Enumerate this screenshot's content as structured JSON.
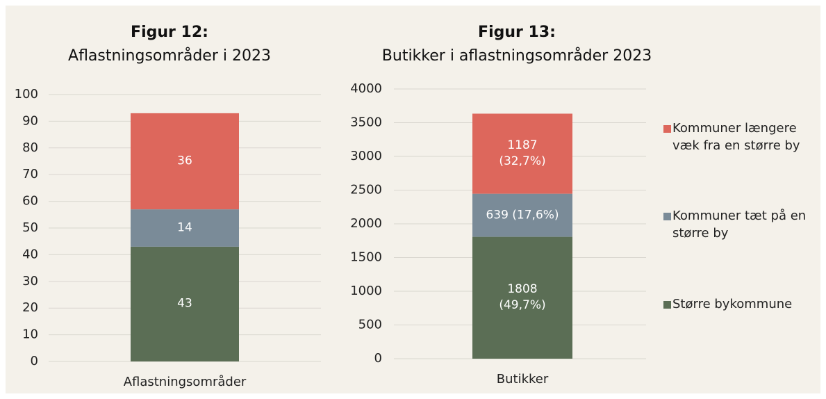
{
  "chart_data": [
    {
      "type": "bar",
      "stacked": true,
      "title": "Figur 12:",
      "subtitle": "Aflastningsområder i 2023",
      "categories": [
        "Aflastningsområder"
      ],
      "series": [
        {
          "color": "#5b6e55",
          "values": [
            43
          ]
        },
        {
          "color": "#7a8b98",
          "values": [
            14
          ]
        },
        {
          "color": "#dd675c",
          "values": [
            36
          ]
        }
      ],
      "ylim": [
        0,
        100
      ],
      "yticks": [
        0,
        10,
        20,
        30,
        40,
        50,
        60,
        70,
        80,
        90,
        100
      ],
      "grid": true
    },
    {
      "type": "bar",
      "stacked": true,
      "title": "Figur 13:",
      "subtitle": "Butikker i aflastningsområder 2023",
      "categories": [
        "Butikker"
      ],
      "series": [
        {
          "name": "Større bykommune",
          "color": "#5b6e55",
          "values": [
            1808
          ],
          "value_labels": [
            "1808 (49,7%)"
          ]
        },
        {
          "name": "Kommuner tæt på en større by",
          "color": "#7a8b98",
          "values": [
            639
          ],
          "value_labels": [
            "639 (17,6%)"
          ]
        },
        {
          "name": "Kommuner længere væk fra en større by",
          "color": "#dd675c",
          "values": [
            1187
          ],
          "value_labels": [
            "1187 (32,7%)"
          ]
        }
      ],
      "ylim": [
        0,
        4000
      ],
      "yticks": [
        0,
        500,
        1000,
        1500,
        2000,
        2500,
        3000,
        3500,
        4000
      ],
      "grid": true,
      "legend": "right"
    }
  ]
}
